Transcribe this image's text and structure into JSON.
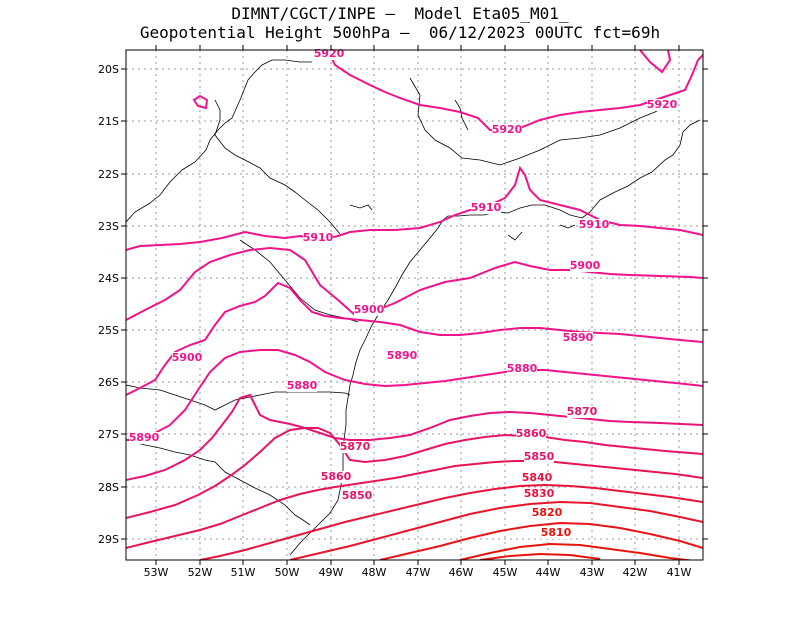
{
  "header": {
    "line1": "DIMNT/CGCT/INPE –  Model Eta05_M01_",
    "line2": "Geopotential Height 500hPa –  06/12/2023 00UTC fct=69h"
  },
  "axes": {
    "lon_labels": [
      "53W",
      "52W",
      "51W",
      "50W",
      "49W",
      "48W",
      "47W",
      "46W",
      "45W",
      "44W",
      "43W",
      "42W",
      "41W"
    ],
    "lat_labels": [
      "20S",
      "21S",
      "22S",
      "23S",
      "24S",
      "25S",
      "26S",
      "27S",
      "28S",
      "29S"
    ]
  },
  "colors": {
    "contour_low": "#e8140a",
    "contour_high": "#f0148c",
    "coast": "#000000",
    "grid": "#9a9a9a"
  },
  "contour_labels": [
    {
      "value": "5920",
      "name": "label-5920-north"
    },
    {
      "value": "5920",
      "name": "label-5920-center"
    },
    {
      "value": "5920",
      "name": "label-5920-east"
    },
    {
      "value": "5910",
      "name": "label-5910-west"
    },
    {
      "value": "5910",
      "name": "label-5910-center"
    },
    {
      "value": "5910",
      "name": "label-5910-east"
    },
    {
      "value": "5900",
      "name": "label-5900-west"
    },
    {
      "value": "5900",
      "name": "label-5900-center"
    },
    {
      "value": "5900",
      "name": "label-5900-east"
    },
    {
      "value": "5890",
      "name": "label-5890-west"
    },
    {
      "value": "5890",
      "name": "label-5890-center"
    },
    {
      "value": "5890",
      "name": "label-5890-east"
    },
    {
      "value": "5880",
      "name": "label-5880-west"
    },
    {
      "value": "5880",
      "name": "label-5880-east"
    },
    {
      "value": "5870",
      "name": "label-5870-west"
    },
    {
      "value": "5870",
      "name": "label-5870-east"
    },
    {
      "value": "5860",
      "name": "label-5860-west"
    },
    {
      "value": "5860",
      "name": "label-5860-east"
    },
    {
      "value": "5850",
      "name": "label-5850-west"
    },
    {
      "value": "5850",
      "name": "label-5850-east"
    },
    {
      "value": "5840",
      "name": "label-5840"
    },
    {
      "value": "5830",
      "name": "label-5830"
    },
    {
      "value": "5820",
      "name": "label-5820"
    },
    {
      "value": "5810",
      "name": "label-5810"
    }
  ]
}
